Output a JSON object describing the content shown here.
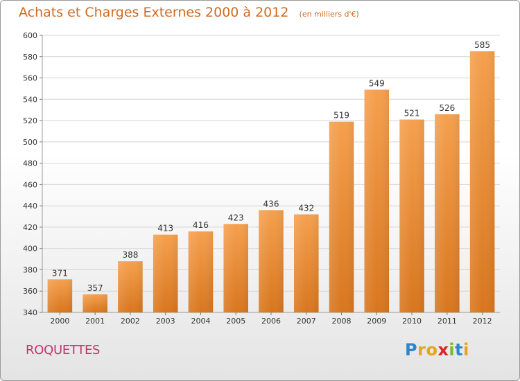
{
  "chart_data": {
    "type": "bar",
    "title": "Achats et Charges Externes 2000 à 2012",
    "subtitle": "(en milliers d'€)",
    "categories": [
      "2000",
      "2001",
      "2002",
      "2003",
      "2004",
      "2005",
      "2006",
      "2007",
      "2008",
      "2009",
      "2010",
      "2011",
      "2012"
    ],
    "values": [
      371,
      357,
      388,
      413,
      416,
      423,
      436,
      432,
      519,
      549,
      521,
      526,
      585
    ],
    "ylim": [
      340,
      600
    ],
    "yticks": [
      340,
      360,
      380,
      400,
      420,
      440,
      460,
      480,
      500,
      520,
      540,
      560,
      580,
      600
    ],
    "grid": true,
    "bar_color_top": "#f5a04e",
    "bar_color_bottom": "#d8761e",
    "xlabel": "",
    "ylabel": ""
  },
  "footer": {
    "commune": "ROQUETTES",
    "logo_letters": [
      "P",
      "r",
      "o",
      "x",
      "i",
      "t",
      "i"
    ],
    "logo_colors": [
      "#2e86c9",
      "#e8a31d",
      "#e8a31d",
      "#d9252a",
      "#7ab82f",
      "#2e86c9",
      "#e8a31d"
    ]
  }
}
